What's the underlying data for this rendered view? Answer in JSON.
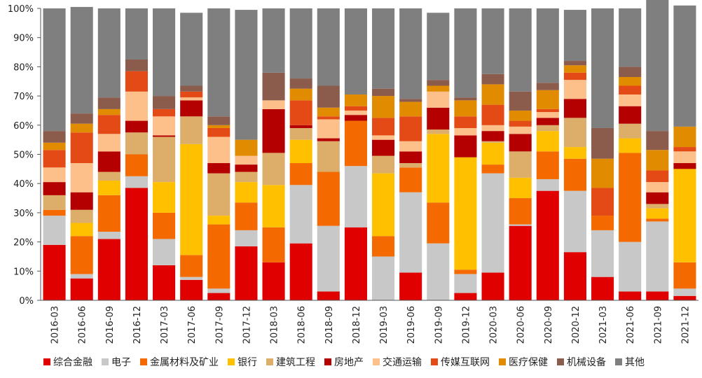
{
  "chart_data": {
    "type": "bar",
    "stacked": true,
    "title": "",
    "xlabel": "",
    "ylabel": "",
    "ylim": [
      0,
      100
    ],
    "y_ticks": [
      "0%",
      "10%",
      "20%",
      "30%",
      "40%",
      "50%",
      "60%",
      "70%",
      "80%",
      "90%",
      "100%"
    ],
    "legend_position": "bottom",
    "categories": [
      "2016-03",
      "2016-06",
      "2016-09",
      "2016-12",
      "2017-03",
      "2017-06",
      "2017-09",
      "2017-12",
      "2018-03",
      "2018-06",
      "2018-09",
      "2018-12",
      "2019-03",
      "2019-06",
      "2019-09",
      "2019-12",
      "2020-03",
      "2020-06",
      "2020-09",
      "2020-12",
      "2021-03",
      "2021-06",
      "2021-09",
      "2021-12"
    ],
    "series": [
      {
        "name": "综合金融",
        "color": "#e00000",
        "values": [
          19,
          7.5,
          21,
          38.5,
          12,
          7,
          2.5,
          18.5,
          13,
          19.5,
          3,
          25,
          0,
          9.5,
          0,
          2.5,
          9.5,
          25.5,
          37.5,
          16.5,
          8,
          3,
          3,
          1.5
        ]
      },
      {
        "name": "电子",
        "color": "#c8c8c8",
        "values": [
          10,
          1.5,
          2.5,
          4,
          9,
          1,
          1.5,
          5.5,
          0,
          20,
          22.5,
          21,
          15,
          27.5,
          19.5,
          6.5,
          34,
          0.5,
          4,
          21,
          16,
          17,
          24,
          2.5
        ]
      },
      {
        "name": "金属材料及矿业",
        "color": "#f46a00",
        "values": [
          2,
          13,
          12.5,
          7.5,
          9,
          7.5,
          22,
          9.5,
          12,
          7.5,
          18.5,
          15.5,
          7,
          8.5,
          14,
          1.5,
          3,
          9,
          9.5,
          11,
          5,
          30.5,
          1,
          9
        ]
      },
      {
        "name": "银行",
        "color": "#ffc000",
        "values": [
          0,
          4.5,
          5,
          0,
          10.5,
          38,
          3,
          7,
          14.5,
          8,
          0,
          0,
          21.5,
          0,
          23.5,
          38.5,
          7.5,
          7,
          7,
          4,
          0,
          5,
          3.5,
          32
        ]
      },
      {
        "name": "建筑工程",
        "color": "#dcae6a",
        "values": [
          5,
          4.5,
          3,
          7.5,
          15.5,
          9.5,
          14.5,
          3.5,
          11,
          4,
          10.5,
          0,
          6,
          1.5,
          1.5,
          0,
          0.5,
          9,
          2,
          10,
          0,
          5,
          1.5,
          0
        ]
      },
      {
        "name": "房地产",
        "color": "#b40000",
        "values": [
          4.5,
          6,
          7,
          4,
          0.5,
          5.5,
          3.5,
          2.5,
          15,
          1,
          1,
          2,
          5.5,
          4,
          7.5,
          7.5,
          3.5,
          6,
          2.5,
          6.5,
          0,
          6,
          4,
          2
        ]
      },
      {
        "name": "交通运输",
        "color": "#fdc08a",
        "values": [
          5,
          10,
          6,
          10,
          6.5,
          1,
          9,
          3,
          3,
          0,
          6.5,
          1.5,
          1.5,
          3.5,
          5.5,
          2.5,
          2,
          2.5,
          2,
          6.5,
          0,
          4,
          3.5,
          4
        ]
      },
      {
        "name": "传媒互联网",
        "color": "#e34a15",
        "values": [
          6,
          10.5,
          6.5,
          7,
          2.5,
          2,
          3,
          0,
          0,
          8.5,
          1,
          1.5,
          6,
          8.5,
          0,
          4,
          7,
          2,
          1,
          2.5,
          9.5,
          3,
          4,
          1.5
        ]
      },
      {
        "name": "医疗保健",
        "color": "#e18c00",
        "values": [
          2.5,
          3,
          2,
          0,
          0,
          0,
          1,
          5.5,
          0,
          4,
          3,
          4,
          7.5,
          5,
          2,
          5.5,
          7,
          3.5,
          6.5,
          2.5,
          10,
          3,
          7,
          7
        ]
      },
      {
        "name": "机械设备",
        "color": "#8b5b4c",
        "values": [
          4,
          3.5,
          4,
          4,
          4.5,
          2,
          3,
          0,
          9.5,
          3.5,
          7.5,
          0,
          2.5,
          1,
          2,
          1,
          3.5,
          6.5,
          2.5,
          1.5,
          10.5,
          3.5,
          6.5,
          0
        ]
      },
      {
        "name": "其他",
        "color": "#7f7f7f",
        "values": [
          42,
          36.5,
          30.5,
          17.5,
          30,
          25,
          37,
          44.5,
          22,
          24,
          26.5,
          29.5,
          27.5,
          31,
          23,
          30.5,
          22.5,
          28.5,
          25.5,
          17.5,
          41,
          20,
          47,
          41.5
        ]
      }
    ]
  }
}
